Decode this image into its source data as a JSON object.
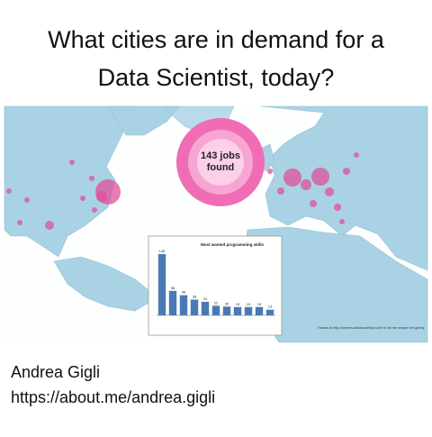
{
  "title": "What cities are in demand for a Data Scientist, today?",
  "map": {
    "badge": "143 jobs found",
    "credit": "Thanks to http://careers.stackoverflow.com/ to let me scrape her gently."
  },
  "chart_data": {
    "type": "bar",
    "title": "Most wanted programming skills",
    "categories": [
      null,
      null,
      null,
      null,
      null,
      null,
      null,
      null,
      null,
      null,
      null
    ],
    "values": [
      140,
      56,
      46,
      36,
      31,
      22,
      20,
      19,
      19,
      19,
      13
    ],
    "color": "#4a7ab5"
  },
  "author": {
    "name": "Andrea Gigli",
    "url": "https://about.me/andrea.gigli"
  }
}
